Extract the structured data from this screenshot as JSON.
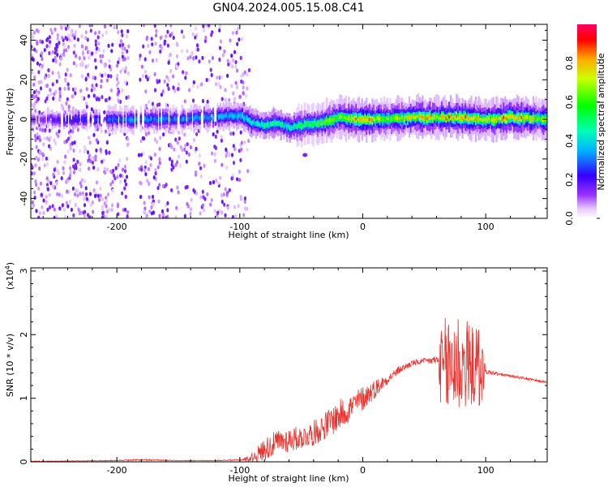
{
  "title": "GN04.2024.005.15.08.C41",
  "chart_data": [
    {
      "type": "heatmap",
      "xlabel": "Height of straight line (km)",
      "ylabel": "Frequency (Hz)",
      "xlim": [
        -270,
        150
      ],
      "ylim": [
        -50,
        48
      ],
      "x_ticks": [
        -200,
        -100,
        0,
        100
      ],
      "x_tick_labels": [
        "-200",
        "-100",
        "0",
        "100"
      ],
      "y_ticks": [
        40,
        20,
        0,
        -20,
        -40
      ],
      "y_tick_labels": [
        "40",
        "20",
        "0",
        "-20",
        "-40"
      ],
      "colorbar": {
        "label": "Normalized spectral amplitude",
        "range": [
          0,
          1
        ],
        "ticks": [
          0.0,
          0.2,
          0.4,
          0.6,
          0.8
        ],
        "tick_labels": [
          "0.0",
          "0.2",
          "0.4",
          "0.6",
          "0.8"
        ],
        "colormap": "rainbow"
      },
      "description_points": {
        "noise_region_x": [
          -270,
          -100
        ],
        "noise_gap_x": [
          -190,
          -182
        ],
        "band_center_hz": [
          [
            -270,
            0
          ],
          [
            -190,
            0
          ],
          [
            -150,
            0
          ],
          [
            -100,
            2
          ],
          [
            -90,
            -2
          ],
          [
            -80,
            -3
          ],
          [
            -70,
            -2
          ],
          [
            -60,
            -4
          ],
          [
            -50,
            -3
          ],
          [
            -40,
            -2
          ],
          [
            -30,
            -1
          ],
          [
            -20,
            1
          ],
          [
            -10,
            0
          ],
          [
            0,
            0
          ],
          [
            20,
            0
          ],
          [
            40,
            1
          ],
          [
            60,
            1
          ],
          [
            80,
            1
          ],
          [
            100,
            0
          ],
          [
            120,
            1
          ],
          [
            150,
            0
          ]
        ],
        "band_peak_amplitude": [
          [
            -270,
            0.15
          ],
          [
            -190,
            0.35
          ],
          [
            -150,
            0.35
          ],
          [
            -100,
            0.4
          ],
          [
            -80,
            0.5
          ],
          [
            -60,
            0.5
          ],
          [
            -40,
            0.6
          ],
          [
            -20,
            0.75
          ],
          [
            0,
            0.9
          ],
          [
            20,
            0.7
          ],
          [
            40,
            0.8
          ],
          [
            60,
            0.85
          ],
          [
            80,
            0.9
          ],
          [
            100,
            0.75
          ],
          [
            120,
            0.95
          ],
          [
            150,
            0.7
          ]
        ]
      }
    },
    {
      "type": "line",
      "xlabel": "Height of straight line (km)",
      "ylabel": "SNR (10 * v/v)",
      "y_multiplier_label": "(x10",
      "y_multiplier_exp": "4",
      "y_multiplier_close": ")",
      "xlim": [
        -270,
        150
      ],
      "ylim": [
        0,
        3.05
      ],
      "x_ticks": [
        -200,
        -100,
        0,
        100
      ],
      "x_tick_labels": [
        "-200",
        "-100",
        "0",
        "100"
      ],
      "y_ticks": [
        0,
        1,
        2,
        3
      ],
      "y_tick_labels": [
        "0",
        "1",
        "2",
        "3"
      ],
      "color": "#e8322d",
      "series": [
        {
          "envelope_x": [
            -270,
            -250,
            -200,
            -180,
            -150,
            -120,
            -100,
            -92,
            -85,
            -80,
            -70,
            -60,
            -50,
            -40,
            -30,
            -20,
            -10,
            0,
            10,
            20,
            30,
            40,
            50,
            60,
            65,
            70,
            75,
            80,
            85,
            90,
            95,
            100,
            110,
            120,
            130,
            140,
            150
          ],
          "envelope_y": [
            0.01,
            0.01,
            0.02,
            0.03,
            0.02,
            0.02,
            0.03,
            0.05,
            0.12,
            0.2,
            0.3,
            0.35,
            0.38,
            0.45,
            0.58,
            0.72,
            0.85,
            1.0,
            1.15,
            1.3,
            1.45,
            1.55,
            1.58,
            1.6,
            1.4,
            1.5,
            1.6,
            1.5,
            1.55,
            1.5,
            1.45,
            1.42,
            1.38,
            1.35,
            1.32,
            1.28,
            1.25
          ],
          "noise_amp": [
            0.005,
            0.005,
            0.006,
            0.015,
            0.006,
            0.006,
            0.01,
            0.05,
            0.14,
            0.18,
            0.2,
            0.2,
            0.18,
            0.2,
            0.22,
            0.25,
            0.22,
            0.2,
            0.15,
            0.08,
            0.06,
            0.05,
            0.05,
            0.08,
            0.8,
            0.9,
            1.0,
            0.8,
            0.7,
            0.6,
            0.8,
            0.04,
            0.03,
            0.02,
            0.02,
            0.02,
            0.02
          ]
        }
      ]
    }
  ]
}
